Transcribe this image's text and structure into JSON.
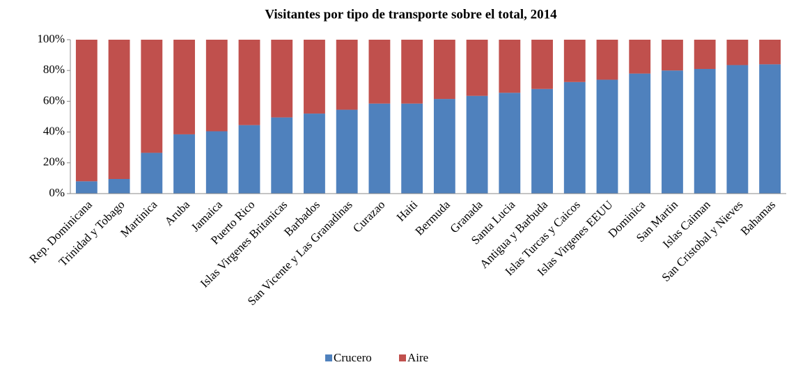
{
  "chart_data": {
    "type": "stacked_bar",
    "title": "Visitantes por tipo de transporte sobre el total, 2014",
    "categories": [
      "Rep. Dominicana",
      "Trinidad y Tobago",
      "Martinica",
      "Aruba",
      "Jamaica",
      "Puerto Rico",
      "Islas Virgenes Britanicas",
      "Barbados",
      "San Vicente y Las Granadinas",
      "Curazao",
      "Haiti",
      "Bermuda",
      "Granada",
      "Santa Lucia",
      "Antigua y Barbuda",
      "Islas Turcas y Caicos",
      "Islas Virgenes EEUU",
      "Dominica",
      "San Martin",
      "Islas Caiman",
      "San Cristobal y Nieves",
      "Bahamas"
    ],
    "series": [
      {
        "name": "Crucero",
        "color": "#4f81bd",
        "values": [
          8,
          9.5,
          26.5,
          38.5,
          40.5,
          44.5,
          49.5,
          52,
          54.5,
          58.5,
          58.5,
          61.5,
          63.5,
          65.5,
          68,
          72.5,
          74,
          78,
          80,
          81,
          83.5,
          84
        ]
      },
      {
        "name": "Aire",
        "color": "#c0504d",
        "values": [
          92,
          90.5,
          73.5,
          61.5,
          59.5,
          55.5,
          50.5,
          48,
          45.5,
          41.5,
          41.5,
          38.5,
          36.5,
          34.5,
          32,
          27.5,
          26,
          22,
          20,
          19,
          16.5,
          16
        ]
      }
    ],
    "ylim": [
      0,
      100
    ],
    "yticks": [
      {
        "value": 0,
        "label": "0%"
      },
      {
        "value": 20,
        "label": "20%"
      },
      {
        "value": 40,
        "label": "40%"
      },
      {
        "value": 60,
        "label": "60%"
      },
      {
        "value": 80,
        "label": "80%"
      },
      {
        "value": 100,
        "label": "100%"
      }
    ],
    "legend": "bottom"
  }
}
